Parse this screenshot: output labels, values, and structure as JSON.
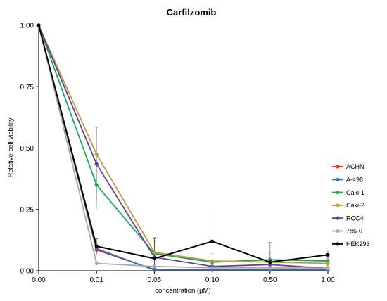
{
  "chart_data": {
    "type": "line",
    "title": "Carfilzomib",
    "xlabel": "concentration (µM)",
    "ylabel": "Relative cell viability",
    "categories": [
      "0.00",
      "0.01",
      "0.05",
      "0.10",
      "0.50",
      "1.00"
    ],
    "y_ticks": [
      "0.00",
      "0.25",
      "0.50",
      "0.75",
      "1.00"
    ],
    "ylim": [
      0,
      1
    ],
    "grid": false,
    "legend_position": "right",
    "series": [
      {
        "name": "ACHN",
        "color": "#e8262a",
        "values": [
          1.0,
          0.085,
          0.005,
          0.005,
          0.005,
          0.005
        ],
        "errors": [
          0,
          0.02,
          0.005,
          0.005,
          0.005,
          0.005
        ]
      },
      {
        "name": "A-498",
        "color": "#1f77b4",
        "values": [
          1.0,
          0.09,
          0.003,
          0.003,
          0.003,
          0.003
        ],
        "errors": [
          0,
          0.02,
          0.005,
          0.005,
          0.005,
          0.005
        ]
      },
      {
        "name": "Caki-1",
        "color": "#1aaa55",
        "values": [
          1.0,
          0.35,
          0.07,
          0.035,
          0.045,
          0.04
        ],
        "errors": [
          0,
          0.1,
          0.05,
          0.03,
          0.03,
          0.02
        ]
      },
      {
        "name": "Caki-2",
        "color": "#b8a040",
        "values": [
          1.0,
          0.475,
          0.075,
          0.04,
          0.035,
          0.03
        ],
        "errors": [
          0,
          0.11,
          0.06,
          0.03,
          0.02,
          0.02
        ]
      },
      {
        "name": "RCC4",
        "color": "#6a3d9a",
        "values": [
          1.0,
          0.435,
          0.055,
          0.018,
          0.025,
          0.01
        ],
        "errors": [
          0,
          0.15,
          0.08,
          0.02,
          0.02,
          0.01
        ]
      },
      {
        "name": "786-0",
        "color": "#aaaaaa",
        "values": [
          1.0,
          0.03,
          0.018,
          0.012,
          0.012,
          0.01
        ],
        "errors": [
          0,
          0.01,
          0.005,
          0.005,
          0.005,
          0.005
        ]
      },
      {
        "name": "HEK293",
        "color": "#000000",
        "values": [
          1.0,
          0.1,
          0.05,
          0.12,
          0.035,
          0.065
        ],
        "errors": [
          0,
          0.03,
          0.08,
          0.09,
          0.08,
          0.02
        ]
      }
    ]
  }
}
